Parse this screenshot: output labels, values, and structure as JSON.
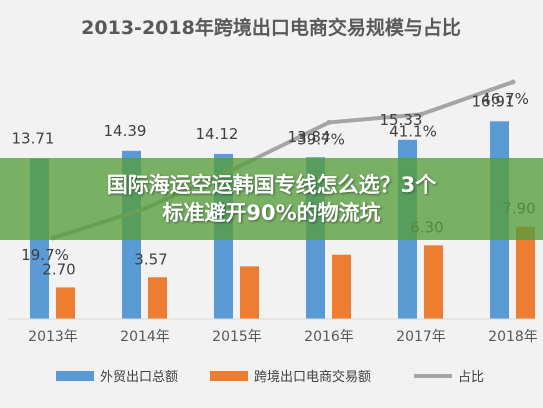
{
  "chart_data": {
    "type": "bar",
    "title": "2013-2018年跨境出口电商交易规模与占比",
    "categories": [
      "2013年",
      "2014年",
      "2015年",
      "2016年",
      "2017年",
      "2018年"
    ],
    "series": [
      {
        "name": "外贸出口总额",
        "kind": "bar",
        "color": "#5b9bd5",
        "values": [
          13.71,
          14.39,
          14.12,
          13.84,
          15.33,
          16.91
        ],
        "labels": [
          "13.71",
          "14.39",
          "14.12",
          "13.84",
          "15.33",
          "16.91"
        ]
      },
      {
        "name": "跨境出口电商交易额",
        "kind": "bar",
        "color": "#ed7d31",
        "values": [
          2.7,
          3.57,
          4.5,
          5.5,
          6.3,
          7.9
        ],
        "labels": [
          "2.70",
          "3.57",
          "",
          "",
          "6.30",
          "7.90"
        ]
      },
      {
        "name": "占比",
        "kind": "line",
        "color": "#a5a5a5",
        "values": [
          19.7,
          24.8,
          31.9,
          39.7,
          41.1,
          46.7
        ],
        "labels": [
          "19.7%",
          "",
          "",
          "39.7%",
          "41.1%",
          "46.7%"
        ]
      }
    ],
    "ylim": [
      0,
      18
    ],
    "grid": false,
    "legend": "bottom"
  },
  "overlay": {
    "line1": "国际海运空运韩国专线怎么选？3个",
    "line2": "标准避开90%的物流坑"
  }
}
